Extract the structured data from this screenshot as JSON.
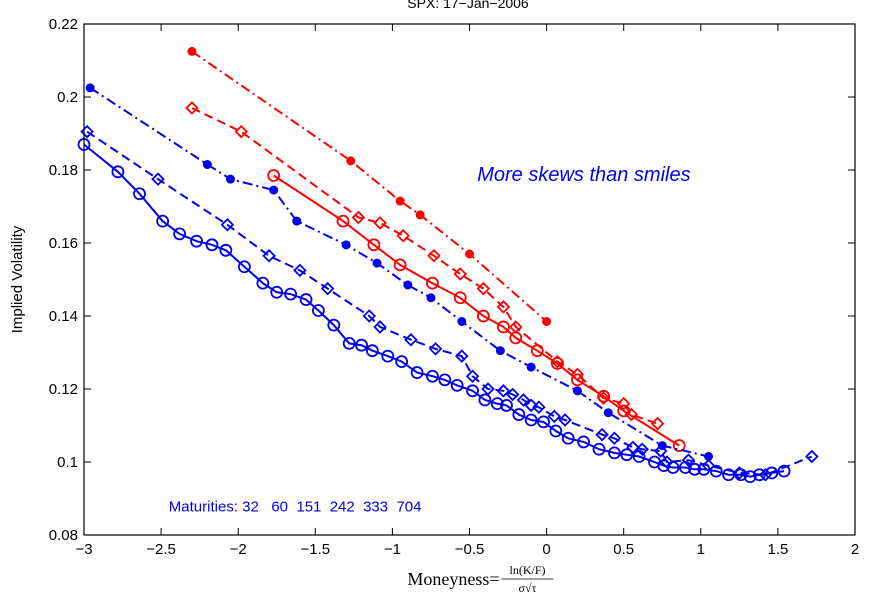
{
  "chart_data": {
    "type": "line",
    "title": "SPX: 17−Jan−2006",
    "ylabel": "Implied Volatility",
    "xlabel": {
      "prefix": "Moneyness=",
      "numerator": "ln(K/F)",
      "denominator": "σ√τ"
    },
    "xlim": [
      -3,
      2
    ],
    "ylim": [
      0.08,
      0.22
    ],
    "xticks": [
      -3,
      -2.5,
      -2,
      -1.5,
      -1,
      -0.5,
      0,
      0.5,
      1,
      1.5,
      2
    ],
    "xtick_labels": [
      "−3",
      "−2.5",
      "−2",
      "−1.5",
      "−1",
      "−0.5",
      "0",
      "0.5",
      "1",
      "1.5",
      "2"
    ],
    "yticks": [
      0.08,
      0.1,
      0.12,
      0.14,
      0.16,
      0.18,
      0.2,
      0.22
    ],
    "ytick_labels": [
      "0.08",
      "0.1",
      "0.12",
      "0.14",
      "0.16",
      "0.18",
      "0.2",
      "0.22"
    ],
    "annotations": [
      {
        "text": "More skews than smiles",
        "x": -0.45,
        "y": 0.177
      },
      {
        "text": "Maturities: 32   60  151  242  333  704",
        "x": -2.45,
        "y": 0.0865
      }
    ],
    "series": [
      {
        "color": "#ff0000",
        "line": "dashdot",
        "marker": "dot",
        "x": [
          -2.3,
          -1.27,
          -0.95,
          -0.82,
          -0.5,
          0.0
        ],
        "y": [
          0.2125,
          0.1825,
          0.1715,
          0.1677,
          0.157,
          0.1385
        ]
      },
      {
        "color": "#ff0000",
        "line": "dashed",
        "marker": "diamond",
        "x": [
          -2.3,
          -1.98,
          -1.22,
          -1.08,
          -0.93,
          -0.73,
          -0.56,
          -0.41,
          -0.28,
          -0.2,
          0.07,
          0.2,
          0.37,
          0.5,
          0.55,
          0.72
        ],
        "y": [
          0.197,
          0.1905,
          0.167,
          0.1655,
          0.162,
          0.1565,
          0.1515,
          0.1475,
          0.1425,
          0.137,
          0.1275,
          0.124,
          0.1175,
          0.116,
          0.113,
          0.1105
        ]
      },
      {
        "color": "#ff0000",
        "line": "solid",
        "marker": "circle",
        "x": [
          -1.77,
          -1.32,
          -1.12,
          -0.95,
          -0.74,
          -0.56,
          -0.41,
          -0.28,
          -0.2,
          -0.06,
          0.07,
          0.2,
          0.37,
          0.5,
          0.86
        ],
        "y": [
          0.1785,
          0.166,
          0.1595,
          0.154,
          0.149,
          0.145,
          0.14,
          0.137,
          0.134,
          0.1305,
          0.127,
          0.1225,
          0.118,
          0.114,
          0.1045
        ]
      },
      {
        "color": "#0000ee",
        "line": "dashdot",
        "marker": "dot",
        "x": [
          -2.96,
          -2.2,
          -2.05,
          -1.77,
          -1.62,
          -1.3,
          -1.1,
          -0.9,
          -0.75,
          -0.55,
          -0.3,
          -0.1,
          0.2,
          0.4,
          0.75,
          1.05
        ],
        "y": [
          0.2025,
          0.1815,
          0.1775,
          0.1745,
          0.166,
          0.1595,
          0.1545,
          0.1485,
          0.145,
          0.1385,
          0.1305,
          0.126,
          0.1195,
          0.1135,
          0.1045,
          0.1015
        ]
      },
      {
        "color": "#0000ee",
        "line": "dashed",
        "marker": "diamond",
        "x": [
          -2.98,
          -2.52,
          -2.07,
          -1.8,
          -1.6,
          -1.42,
          -1.15,
          -1.08,
          -0.88,
          -0.72,
          -0.55,
          -0.48,
          -0.38,
          -0.28,
          -0.22,
          -0.15,
          -0.1,
          -0.05,
          0.05,
          0.12,
          0.36,
          0.44,
          0.56,
          0.62,
          0.74,
          0.78,
          0.92,
          1.05,
          1.25,
          1.42,
          1.72
        ],
        "y": [
          0.1905,
          0.1775,
          0.165,
          0.1565,
          0.1525,
          0.1475,
          0.14,
          0.137,
          0.1335,
          0.131,
          0.129,
          0.1235,
          0.12,
          0.1195,
          0.1185,
          0.117,
          0.1155,
          0.115,
          0.1125,
          0.1115,
          0.1075,
          0.1065,
          0.104,
          0.1035,
          0.103,
          0.1,
          0.1005,
          0.099,
          0.097,
          0.0965,
          0.1015
        ]
      },
      {
        "color": "#0000ee",
        "line": "solid",
        "marker": "circle",
        "x": [
          -3.0,
          -2.78,
          -2.64,
          -2.49,
          -2.38,
          -2.27,
          -2.17,
          -2.08,
          -1.96,
          -1.84,
          -1.75,
          -1.66,
          -1.56,
          -1.48,
          -1.38,
          -1.28,
          -1.2,
          -1.13,
          -1.03,
          -0.94,
          -0.84,
          -0.74,
          -0.66,
          -0.58,
          -0.48,
          -0.4,
          -0.32,
          -0.26,
          -0.18,
          -0.1,
          -0.02,
          0.06,
          0.14,
          0.24,
          0.34,
          0.44,
          0.52,
          0.6,
          0.7,
          0.76,
          0.82,
          0.9,
          0.96,
          1.02,
          1.1,
          1.18,
          1.26,
          1.32,
          1.38,
          1.46,
          1.54
        ],
        "y": [
          0.187,
          0.1795,
          0.1735,
          0.166,
          0.1625,
          0.1605,
          0.1595,
          0.158,
          0.1535,
          0.149,
          0.1465,
          0.146,
          0.1445,
          0.1415,
          0.1375,
          0.1325,
          0.132,
          0.1305,
          0.129,
          0.1275,
          0.1245,
          0.1235,
          0.1225,
          0.121,
          0.1195,
          0.117,
          0.116,
          0.1155,
          0.113,
          0.1115,
          0.111,
          0.1085,
          0.1065,
          0.1055,
          0.1035,
          0.1025,
          0.102,
          0.1015,
          0.1,
          0.099,
          0.0985,
          0.0985,
          0.098,
          0.098,
          0.0975,
          0.0965,
          0.0965,
          0.096,
          0.0965,
          0.097,
          0.0975
        ]
      }
    ]
  }
}
